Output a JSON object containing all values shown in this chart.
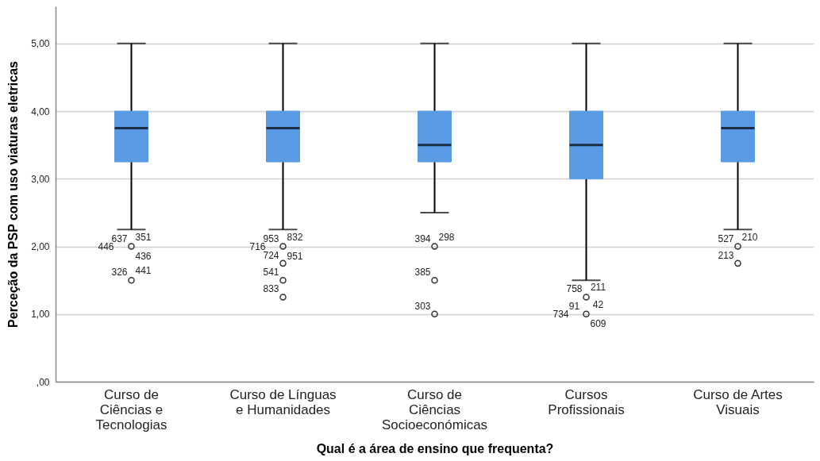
{
  "chart_data": {
    "type": "box",
    "xlabel": "Qual é a área de ensino que frequenta?",
    "ylabel": "Perceção da PSP com uso viaturas eletricas",
    "categories": [
      "Curso de\nCiências e\nTecnologias",
      "Curso de Línguas\ne Humanidades",
      "Curso de\nCiências\nSocioeconómicas",
      "Cursos\nProfissionais",
      "Curso de Artes\nVisuais"
    ],
    "series": [
      {
        "color": "#5a9be6",
        "boxes": [
          {
            "low": 2.25,
            "q1": 3.25,
            "median": 3.75,
            "q3": 4,
            "high": 5
          },
          {
            "low": 2.25,
            "q1": 3.25,
            "median": 3.75,
            "q3": 4,
            "high": 5
          },
          {
            "low": 2.5,
            "q1": 3.25,
            "median": 3.5,
            "q3": 4,
            "high": 5
          },
          {
            "low": 1.5,
            "q1": 3,
            "median": 3.5,
            "q3": 4,
            "high": 5
          },
          {
            "low": 2.25,
            "q1": 3.25,
            "median": 3.75,
            "q3": 4,
            "high": 5
          }
        ]
      },
      {
        "type": "scatter",
        "color": "#333333",
        "x": [
          "Curso de\nCiências e\nTecnologias",
          "Curso de\nCiências e\nTecnologias",
          "Curso de Línguas\ne Humanidades",
          "Curso de Línguas\ne Humanidades",
          "Curso de Línguas\ne Humanidades",
          "Curso de Línguas\ne Humanidades",
          "Curso de\nCiências\nSocioeconómicas",
          "Curso de\nCiências\nSocioeconómicas",
          "Curso de\nCiências\nSocioeconómicas",
          "Cursos\nProfissionais",
          "Cursos\nProfissionais",
          "Curso de Artes\nVisuais",
          "Curso de Artes\nVisuais"
        ],
        "values": [
          2,
          1.5,
          2,
          1.75,
          1.5,
          1.25,
          2,
          1.5,
          1,
          1.25,
          1,
          2,
          1.75
        ]
      }
    ],
    "ylim": [
      0,
      5.55
    ],
    "yticks": [
      {
        "value": 0,
        "label": ",00"
      },
      {
        "value": 1,
        "label": "1,00"
      },
      {
        "value": 2,
        "label": "2,00"
      },
      {
        "value": 3,
        "label": "3,00"
      },
      {
        "value": 4,
        "label": "4,00"
      },
      {
        "value": 5,
        "label": "5,00"
      }
    ],
    "grid": "y",
    "marker": "circle",
    "annotations": [
      {
        "text": "637",
        "x": "Curso de\nCiências e\nTecnologias",
        "y": 2
      },
      {
        "text": "351",
        "x": "Curso de\nCiências e\nTecnologias",
        "y": 2
      },
      {
        "text": "446",
        "x": "Curso de\nCiências e\nTecnologias",
        "y": 2
      },
      {
        "text": "436",
        "x": "Curso de\nCiências e\nTecnologias",
        "y": 2
      },
      {
        "text": "326",
        "x": "Curso de\nCiências e\nTecnologias",
        "y": 1.5
      },
      {
        "text": "441",
        "x": "Curso de\nCiências e\nTecnologias",
        "y": 1.5
      },
      {
        "text": "953",
        "x": "Curso de Línguas\ne Humanidades",
        "y": 2
      },
      {
        "text": "832",
        "x": "Curso de Línguas\ne Humanidades",
        "y": 2
      },
      {
        "text": "716",
        "x": "Curso de Línguas\ne Humanidades",
        "y": 2
      },
      {
        "text": "951",
        "x": "Curso de Línguas\ne Humanidades",
        "y": 2
      },
      {
        "text": "724",
        "x": "Curso de Línguas\ne Humanidades",
        "y": 1.75
      },
      {
        "text": "541",
        "x": "Curso de Línguas\ne Humanidades",
        "y": 1.5
      },
      {
        "text": "833",
        "x": "Curso de Línguas\ne Humanidades",
        "y": 1.25
      },
      {
        "text": "394",
        "x": "Curso de\nCiências\nSocioeconómicas",
        "y": 2
      },
      {
        "text": "298",
        "x": "Curso de\nCiências\nSocioeconómicas",
        "y": 2
      },
      {
        "text": "385",
        "x": "Curso de\nCiências\nSocioeconómicas",
        "y": 1.5
      },
      {
        "text": "303",
        "x": "Curso de\nCiências\nSocioeconómicas",
        "y": 1
      },
      {
        "text": "758",
        "x": "Cursos\nProfissionais",
        "y": 1.25
      },
      {
        "text": "211",
        "x": "Cursos\nProfissionais",
        "y": 1.25
      },
      {
        "text": "91",
        "x": "Cursos\nProfissionais",
        "y": 1
      },
      {
        "text": "42",
        "x": "Cursos\nProfissionais",
        "y": 1
      },
      {
        "text": "734",
        "x": "Cursos\nProfissionais",
        "y": 1
      },
      {
        "text": "609",
        "x": "Cursos\nProfissionais",
        "y": 1
      },
      {
        "text": "527",
        "x": "Curso de Artes\nVisuais",
        "y": 2
      },
      {
        "text": "210",
        "x": "Curso de Artes\nVisuais",
        "y": 2
      },
      {
        "text": "213",
        "x": "Curso de Artes\nVisuais",
        "y": 1.75
      }
    ]
  }
}
